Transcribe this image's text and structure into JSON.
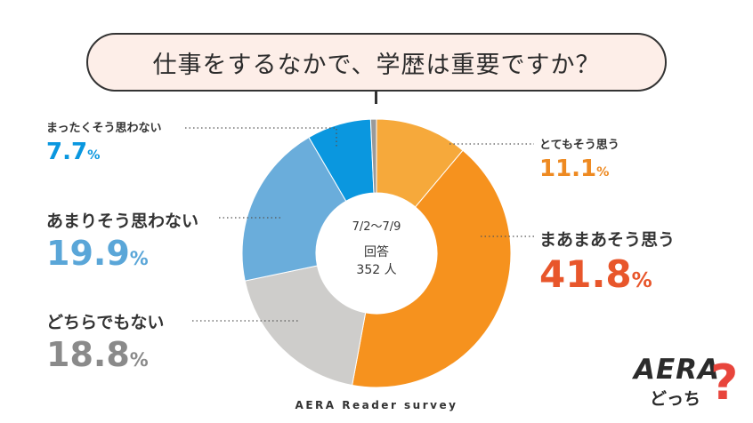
{
  "title": "仕事をするなかで、学歴は重要ですか？",
  "center": {
    "date_range": "7/2～7/9",
    "respondents_label": "回答",
    "respondents_count": "352 人"
  },
  "source": "AERA Reader survey",
  "logo": {
    "brand": "AERA",
    "sub": "どっち",
    "mark": "?"
  },
  "colors": {
    "accent_red": "#e8453c",
    "tail": "#333333"
  },
  "chart_data": {
    "type": "pie",
    "style": "donut",
    "unit": "%",
    "slices": [
      {
        "label": "とてもそう思う",
        "value": 11.1,
        "value_text": "11.1",
        "color": "#f6a93b",
        "label_color": "#ee8a22"
      },
      {
        "label": "まあまあそう思う",
        "value": 41.8,
        "value_text": "41.8",
        "color": "#f6921e",
        "label_color": "#e8562b"
      },
      {
        "label": "どちらでもない",
        "value": 18.8,
        "value_text": "18.8",
        "color": "#cecdcb",
        "label_color": "#8a8a8a"
      },
      {
        "label": "あまりそう思わない",
        "value": 19.9,
        "value_text": "19.9",
        "color": "#6aaddb",
        "label_color": "#5aa6d8"
      },
      {
        "label": "まったくそう思わない",
        "value": 7.7,
        "value_text": "7.7",
        "color": "#0a97df",
        "label_color": "#0a97df"
      },
      {
        "label": "",
        "value": 0.7,
        "value_text": "",
        "color": "#9a9a9a",
        "label_color": "#9a9a9a"
      }
    ]
  }
}
